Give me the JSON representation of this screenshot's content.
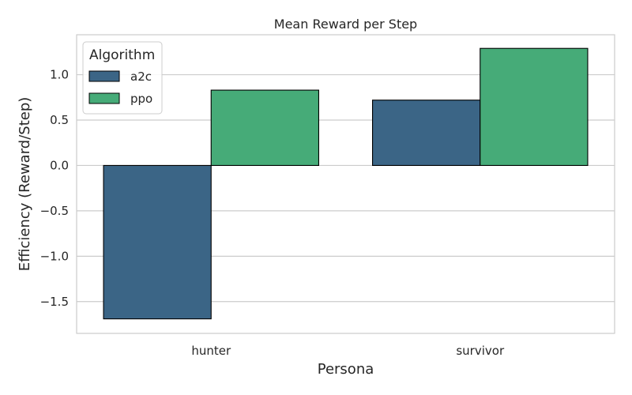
{
  "chart_data": {
    "type": "bar",
    "title": "Mean Reward per Step",
    "xlabel": "Persona",
    "ylabel": "Efficiency (Reward/Step)",
    "categories": [
      "hunter",
      "survivor"
    ],
    "series": [
      {
        "name": "a2c",
        "color": "#3b6586",
        "values": [
          -1.69,
          0.72
        ]
      },
      {
        "name": "ppo",
        "color": "#46ab78",
        "values": [
          0.83,
          1.29
        ]
      }
    ],
    "ylim": [
      -1.85,
      1.44
    ],
    "yticks": [
      -1.5,
      -1.0,
      -0.5,
      0.0,
      0.5,
      1.0
    ],
    "ytick_labels": [
      "−1.5",
      "−1.0",
      "−0.5",
      "0.0",
      "0.5",
      "1.0"
    ],
    "grid": true,
    "legend": {
      "title": "Algorithm",
      "placement": "top-left"
    }
  }
}
